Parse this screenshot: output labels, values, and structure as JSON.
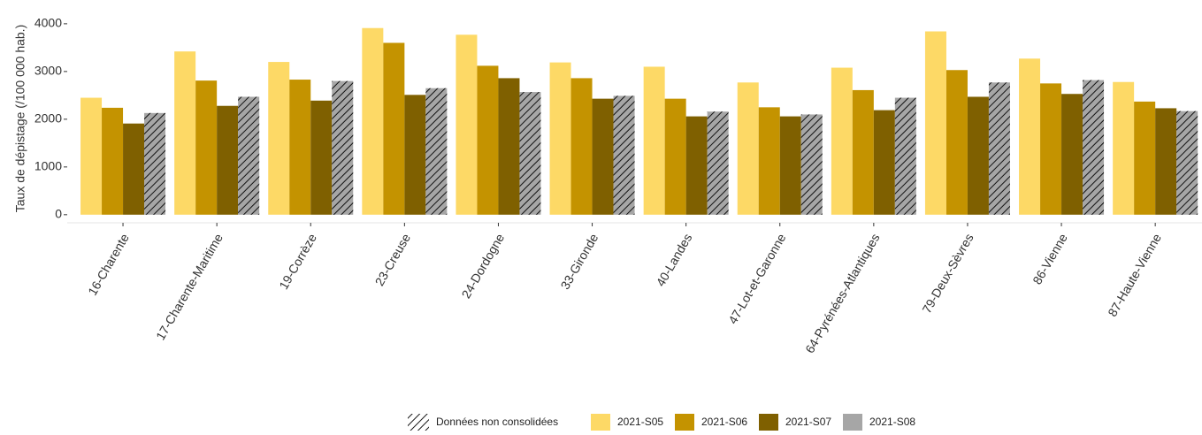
{
  "chart_data": {
    "type": "bar",
    "y_label": "Taux de dépistage (/100 000 hab.)",
    "categories": [
      "16-Charente",
      "17-Charente-Maritime",
      "19-Corrèze",
      "23-Creuse",
      "24-Dordogne",
      "33-Gironde",
      "40-Landes",
      "47-Lot-et-Garonne",
      "64-Pyrénées-Atlantiques",
      "79-Deux-Sèvres",
      "86-Vienne",
      "87-Haute-Vienne"
    ],
    "series": [
      {
        "name": "2021-S05",
        "color": "#fdd966",
        "values": [
          2450,
          3420,
          3200,
          3910,
          3770,
          3190,
          3100,
          2770,
          3080,
          3840,
          3270,
          2780
        ]
      },
      {
        "name": "2021-S06",
        "color": "#c49300",
        "values": [
          2240,
          2810,
          2830,
          3600,
          3120,
          2860,
          2430,
          2250,
          2610,
          3030,
          2750,
          2370
        ]
      },
      {
        "name": "2021-S07",
        "color": "#7f6000",
        "values": [
          1910,
          2280,
          2390,
          2510,
          2860,
          2430,
          2060,
          2060,
          2190,
          2470,
          2530,
          2230
        ]
      },
      {
        "name": "2021-S08",
        "color": "#a6a6a6",
        "hatched": true,
        "values": [
          2130,
          2470,
          2800,
          2650,
          2570,
          2490,
          2160,
          2100,
          2450,
          2770,
          2820,
          2170
        ]
      }
    ],
    "hatch_label": "Données non consolidées",
    "ylim": [
      -170,
      4220
    ],
    "yticks": [
      0,
      1000,
      2000,
      3000,
      4000
    ],
    "legend": "bottom"
  }
}
